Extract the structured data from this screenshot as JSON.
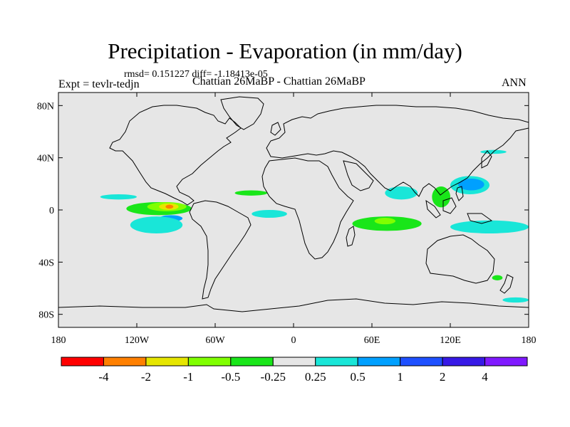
{
  "chart_data": {
    "type": "heatmap",
    "title": "Precipitation - Evaporation (in mm/day)",
    "stats_line": "rmsd= 0.151227 diff= -1.18413e-05",
    "left_label": "Expt = tevlr-tedjn",
    "subtitle": "Chattian  26MaBP - Chattian  26MaBP",
    "right_label": "ANN",
    "x_axis": {
      "range": [
        -180,
        180
      ],
      "ticks": [
        {
          "value": -180,
          "label": "180"
        },
        {
          "value": -120,
          "label": "120W"
        },
        {
          "value": -60,
          "label": "60W"
        },
        {
          "value": 0,
          "label": "0"
        },
        {
          "value": 60,
          "label": "60E"
        },
        {
          "value": 120,
          "label": "120E"
        },
        {
          "value": 180,
          "label": "180"
        }
      ]
    },
    "y_axis": {
      "range": [
        -90,
        90
      ],
      "ticks": [
        {
          "value": 80,
          "label": "80N"
        },
        {
          "value": 40,
          "label": "40N"
        },
        {
          "value": 0,
          "label": "0"
        },
        {
          "value": -40,
          "label": "40S"
        },
        {
          "value": -80,
          "label": "80S"
        }
      ]
    },
    "colorbar": {
      "colors": [
        "#ff0000",
        "#ff8000",
        "#e6e600",
        "#80ff00",
        "#19e619",
        "#e6e6e6",
        "#19e6d8",
        "#00a0ff",
        "#1e50ff",
        "#3719e6",
        "#8019ff"
      ],
      "labels": [
        "-4",
        "-2",
        "-1",
        "-0.5",
        "-0.25",
        "0.25",
        "0.5",
        "1",
        "2",
        "4"
      ]
    },
    "background_color": "#e6e6e6",
    "regions": [
      {
        "name": "east-pacific-itcz",
        "class": "-0.25",
        "color": "#19e619",
        "lon": [
          -128,
          -78
        ],
        "lat": [
          -4,
          6
        ]
      },
      {
        "name": "east-pacific-core",
        "class": "-0.5",
        "color": "#80ff00",
        "lon": [
          -112,
          -82
        ],
        "lat": [
          -1,
          6
        ]
      },
      {
        "name": "east-pacific-max",
        "class": "-1",
        "color": "#e6e600",
        "lon": [
          -103,
          -88
        ],
        "lat": [
          0,
          5
        ]
      },
      {
        "name": "east-pacific-peak",
        "class": "-2",
        "color": "#ff8000",
        "lon": [
          -98,
          -92
        ],
        "lat": [
          1,
          4
        ]
      },
      {
        "name": "north-pacific-band",
        "class": "0.25",
        "color": "#19e6d8",
        "lon": [
          -148,
          -120
        ],
        "lat": [
          8,
          12
        ]
      },
      {
        "name": "peru-coast",
        "class": "0.5",
        "color": "#00a0ff",
        "lon": [
          -103,
          -85
        ],
        "lat": [
          -9,
          -4
        ]
      },
      {
        "name": "south-pacific-teal",
        "class": "0.25",
        "color": "#19e6d8",
        "lon": [
          -125,
          -85
        ],
        "lat": [
          -18,
          -5
        ]
      },
      {
        "name": "atlantic-itcz",
        "class": "-0.25",
        "color": "#19e619",
        "lon": [
          -45,
          -20
        ],
        "lat": [
          11,
          15
        ]
      },
      {
        "name": "south-atlantic",
        "class": "0.25",
        "color": "#19e6d8",
        "lon": [
          -32,
          -5
        ],
        "lat": [
          -6,
          0
        ]
      },
      {
        "name": "indian-ocean-south",
        "class": "-0.25",
        "color": "#19e619",
        "lon": [
          45,
          98
        ],
        "lat": [
          -16,
          -5
        ]
      },
      {
        "name": "indian-ocean-core",
        "class": "-0.5",
        "color": "#80ff00",
        "lon": [
          62,
          78
        ],
        "lat": [
          -11,
          -6
        ]
      },
      {
        "name": "bay-of-bengal",
        "class": "0.25",
        "color": "#19e6d8",
        "lon": [
          70,
          95
        ],
        "lat": [
          8,
          18
        ]
      },
      {
        "name": "east-asia-green",
        "class": "-0.25",
        "color": "#19e619",
        "lon": [
          106,
          120
        ],
        "lat": [
          2,
          18
        ]
      },
      {
        "name": "west-pacific-teal",
        "class": "0.25",
        "color": "#19e6d8",
        "lon": [
          120,
          150
        ],
        "lat": [
          12,
          26
        ]
      },
      {
        "name": "west-pacific-core",
        "class": "0.5",
        "color": "#00a0ff",
        "lon": [
          126,
          146
        ],
        "lat": [
          15,
          24
        ]
      },
      {
        "name": "south-west-pacific",
        "class": "0.25",
        "color": "#19e6d8",
        "lon": [
          120,
          180
        ],
        "lat": [
          -18,
          -8
        ]
      },
      {
        "name": "north-pacific-teal",
        "class": "0.25",
        "color": "#19e6d8",
        "lon": [
          143,
          163
        ],
        "lat": [
          43,
          46
        ]
      },
      {
        "name": "tasman-green",
        "class": "-0.25",
        "color": "#19e619",
        "lon": [
          152,
          160
        ],
        "lat": [
          -54,
          -50
        ]
      },
      {
        "name": "southern-ocean-teal",
        "class": "0.25",
        "color": "#19e6d8",
        "lon": [
          160,
          180
        ],
        "lat": [
          -71,
          -67
        ]
      }
    ]
  }
}
